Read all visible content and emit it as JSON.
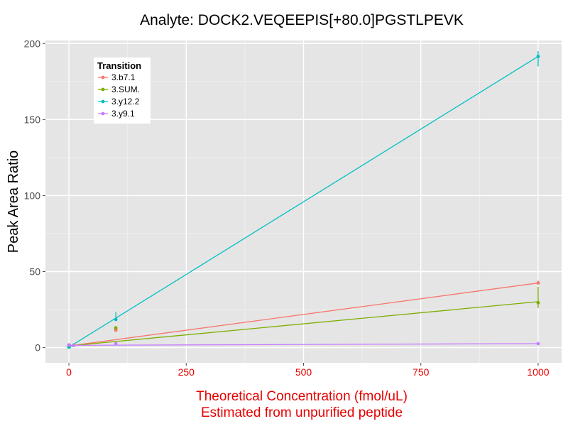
{
  "chart_data": {
    "type": "line",
    "title": "Analyte: DOCK2.VEQEEPIS[+80.0]PGSTLPEVK",
    "ylabel": "Peak Area Ratio",
    "xlabel_lines": [
      "Theoretical Concentration (fmol/uL)",
      "Estimated from unpurified peptide"
    ],
    "xlabel_color": "#e60000",
    "xtick_color": "#e60000",
    "xlim": [
      -50,
      1050
    ],
    "ylim": [
      -10,
      202
    ],
    "xticks": [
      0,
      250,
      500,
      750,
      1000
    ],
    "yticks": [
      0,
      50,
      100,
      150,
      200
    ],
    "xtick_labels": [
      "0",
      "250",
      "500",
      "750",
      "1000"
    ],
    "ytick_labels": [
      "0",
      "50",
      "100",
      "150",
      "200"
    ],
    "grid": true,
    "legend": {
      "title": "Transition",
      "position": "top-left"
    },
    "series": [
      {
        "name": "3.b7.1",
        "color": "#f8766d",
        "points": [
          [
            0,
            0.8
          ],
          [
            1,
            1.0
          ],
          [
            10,
            1.6
          ],
          [
            100,
            11.5
          ],
          [
            100,
            12.5
          ],
          [
            1000,
            42.5
          ]
        ],
        "errorbars": [
          [
            100,
            11.0,
            13.0
          ],
          [
            1000,
            41.5,
            44.0
          ]
        ],
        "fit": [
          [
            0,
            1.1
          ],
          [
            1000,
            42.5
          ]
        ]
      },
      {
        "name": "3.SUM.",
        "color": "#7cae00",
        "points": [
          [
            0,
            0.5
          ],
          [
            1,
            0.7
          ],
          [
            10,
            1.6
          ],
          [
            100,
            13.0
          ],
          [
            1000,
            29.5
          ]
        ],
        "errorbars": [
          [
            100,
            12.0,
            14.0
          ],
          [
            1000,
            26.0,
            40.0
          ]
        ],
        "fit": [
          [
            0,
            1.1
          ],
          [
            1000,
            30.2
          ]
        ]
      },
      {
        "name": "3.y12.2",
        "color": "#00bfc4",
        "points": [
          [
            0,
            0.3
          ],
          [
            1,
            0.5
          ],
          [
            10,
            1.5
          ],
          [
            100,
            18.5
          ],
          [
            1000,
            191.5
          ]
        ],
        "errorbars": [
          [
            100,
            17.5,
            23.5
          ],
          [
            1000,
            185.0,
            195.0
          ]
        ],
        "fit": [
          [
            0,
            0.3
          ],
          [
            1000,
            191.5
          ]
        ]
      },
      {
        "name": "3.y9.1",
        "color": "#c77cff",
        "points": [
          [
            0,
            1.8
          ],
          [
            1,
            1.6
          ],
          [
            10,
            1.5
          ],
          [
            100,
            2.6
          ],
          [
            1000,
            2.6
          ]
        ],
        "errorbars": [
          [
            100,
            2.1,
            3.1
          ]
        ],
        "fit": [
          [
            0,
            1.5
          ],
          [
            1000,
            2.6
          ]
        ]
      }
    ]
  }
}
